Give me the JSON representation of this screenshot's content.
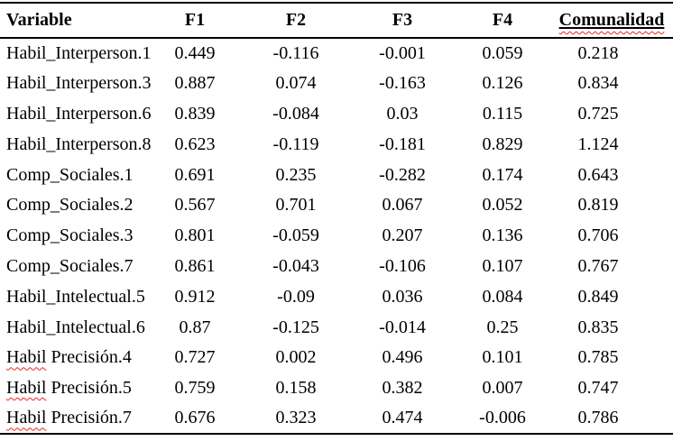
{
  "colors": {
    "background": "#ffffff",
    "text": "#000000",
    "table_rules": "#000000",
    "spellcheck_squiggle": "#e8251f"
  },
  "table": {
    "headers": [
      {
        "key": "variable",
        "label": "Variable"
      },
      {
        "key": "f1",
        "label": "F1"
      },
      {
        "key": "f2",
        "label": "F2"
      },
      {
        "key": "f3",
        "label": "F3"
      },
      {
        "key": "f4",
        "label": "F4"
      },
      {
        "key": "comunalidad",
        "label": "Comunalidad",
        "solid_underline": true,
        "spellcheck_squiggle": true
      }
    ],
    "rows": [
      {
        "variable": "Habil_Interperson.1",
        "f1": "0.449",
        "f2": "-0.116",
        "f3": "-0.001",
        "f4": "0.059",
        "comunalidad": "0.218"
      },
      {
        "variable": "Habil_Interperson.3",
        "f1": "0.887",
        "f2": "0.074",
        "f3": "-0.163",
        "f4": "0.126",
        "comunalidad": "0.834"
      },
      {
        "variable": "Habil_Interperson.6",
        "f1": "0.839",
        "f2": "-0.084",
        "f3": "0.03",
        "f4": "0.115",
        "comunalidad": "0.725"
      },
      {
        "variable": "Habil_Interperson.8",
        "f1": "0.623",
        "f2": "-0.119",
        "f3": "-0.181",
        "f4": "0.829",
        "comunalidad": "1.124"
      },
      {
        "variable": "Comp_Sociales.1",
        "f1": "0.691",
        "f2": "0.235",
        "f3": "-0.282",
        "f4": "0.174",
        "comunalidad": "0.643"
      },
      {
        "variable": "Comp_Sociales.2",
        "f1": "0.567",
        "f2": "0.701",
        "f3": "0.067",
        "f4": "0.052",
        "comunalidad": "0.819"
      },
      {
        "variable": "Comp_Sociales.3",
        "f1": "0.801",
        "f2": "-0.059",
        "f3": "0.207",
        "f4": "0.136",
        "comunalidad": "0.706"
      },
      {
        "variable": "Comp_Sociales.7",
        "f1": "0.861",
        "f2": "-0.043",
        "f3": "-0.106",
        "f4": "0.107",
        "comunalidad": "0.767"
      },
      {
        "variable": "Habil_Intelectual.5",
        "f1": "0.912",
        "f2": "-0.09",
        "f3": "0.036",
        "f4": "0.084",
        "comunalidad": "0.849"
      },
      {
        "variable": "Habil_Intelectual.6",
        "f1": "0.87",
        "f2": "-0.125",
        "f3": "-0.014",
        "f4": "0.25",
        "comunalidad": "0.835"
      },
      {
        "variable": "Habil Precisión.4",
        "spellcheck_under": "Habil",
        "f1": "0.727",
        "f2": "0.002",
        "f3": "0.496",
        "f4": "0.101",
        "comunalidad": "0.785"
      },
      {
        "variable": "Habil Precisión.5",
        "spellcheck_under": "Habil",
        "f1": "0.759",
        "f2": "0.158",
        "f3": "0.382",
        "f4": "0.007",
        "comunalidad": "0.747"
      },
      {
        "variable": "Habil Precisión.7",
        "spellcheck_under": "Habil",
        "f1": "0.676",
        "f2": "0.323",
        "f3": "0.474",
        "f4": "-0.006",
        "comunalidad": "0.786"
      }
    ]
  }
}
